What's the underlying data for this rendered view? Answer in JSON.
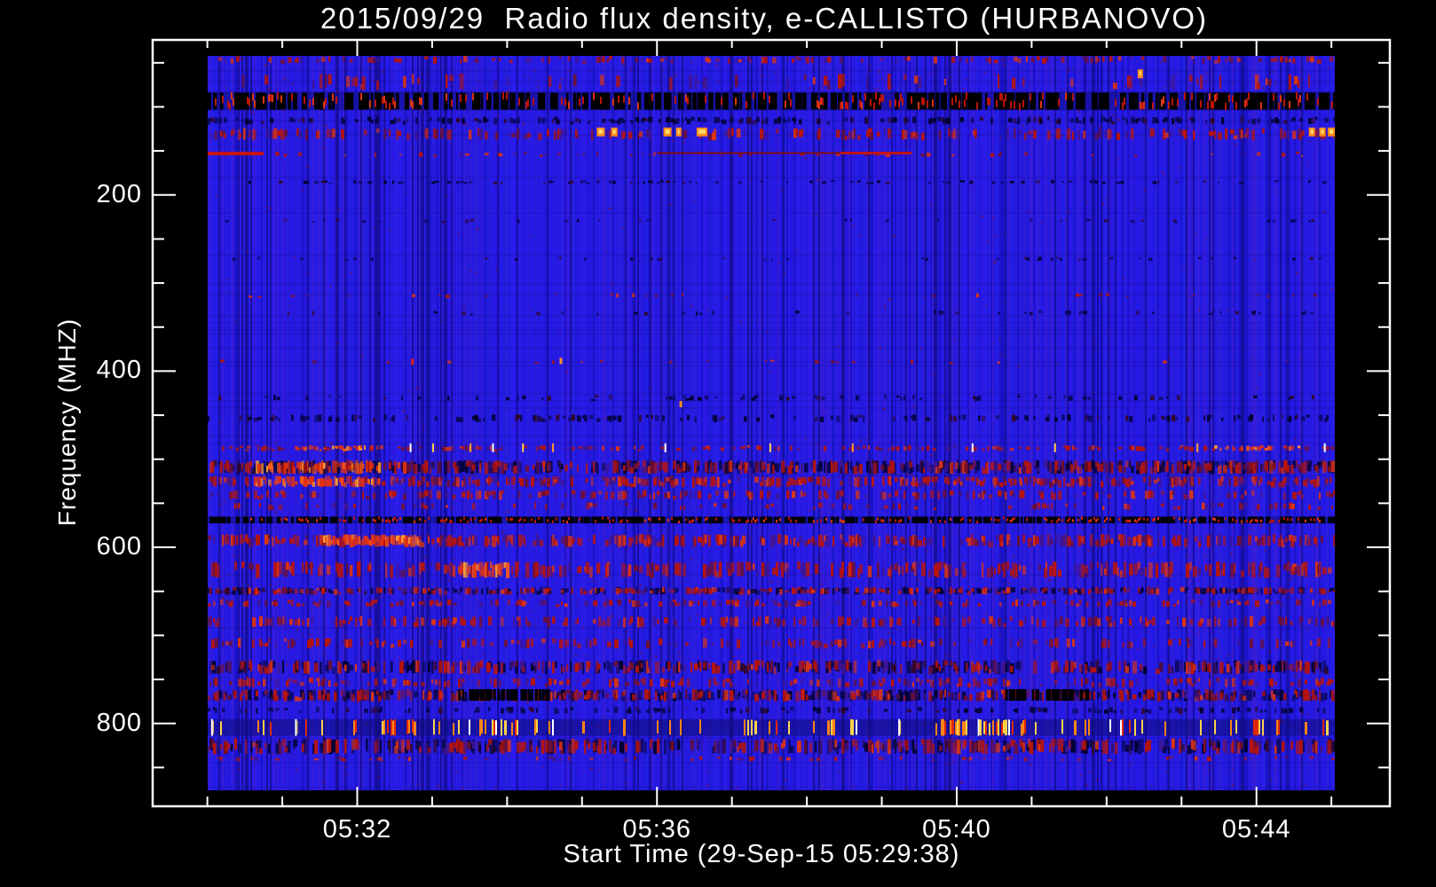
{
  "chart_data": {
    "type": "heatmap",
    "title": "2015/09/29  Radio flux density, e-CALLISTO (HURBANOVO)",
    "xlabel": "Start Time (29-Sep-15 05:29:38)",
    "ylabel": "Frequency (MHZ)",
    "date": "2015/09/29",
    "instrument": "e-CALLISTO",
    "station": "HURBANOVO",
    "start_time": "05:29:38",
    "x_ticks": [
      {
        "label": "05:32",
        "minutes": 32
      },
      {
        "label": "05:36",
        "minutes": 36
      },
      {
        "label": "05:40",
        "minutes": 40
      },
      {
        "label": "05:44",
        "minutes": 44
      }
    ],
    "y_ticks": [
      {
        "label": "200",
        "mhz": 200
      },
      {
        "label": "400",
        "mhz": 400
      },
      {
        "label": "600",
        "mhz": 600
      },
      {
        "label": "800",
        "mhz": 800
      }
    ],
    "x_axis": {
      "range_min": [
        29.27,
        45.78
      ],
      "minor_step_min": 1,
      "units": "hh:mm"
    },
    "y_axis": {
      "range_mhz": [
        24,
        894
      ],
      "minor_step_mhz": 50,
      "inverted": true
    },
    "image_extent": {
      "t_min": [
        30.0,
        45.05
      ],
      "f_mhz": [
        42,
        876
      ]
    },
    "colors": {
      "background": "#2519dd",
      "frame": "#ffffff",
      "text": "#ffffff",
      "rfi_red": "#b81408",
      "rfi_bright": "#ff8414",
      "rfi_yellow": "#ffd24a",
      "rfi_white": "#ffffff",
      "rfi_dark": "#07074a"
    },
    "rfi_bands": [
      {
        "f": [
          42,
          50
        ],
        "style": "speckle",
        "d": 0.2
      },
      {
        "f": [
          62,
          80
        ],
        "style": "speckle",
        "d": 0.1
      },
      {
        "f": [
          83,
          104
        ],
        "style": "black_dash",
        "d": 0.5
      },
      {
        "f": [
          111,
          119
        ],
        "style": "dark",
        "d": 0.3
      },
      {
        "f": [
          124,
          137
        ],
        "style": "speckle",
        "d": 0.3
      },
      {
        "f": [
          151,
          156
        ],
        "style": "speckle",
        "d": 0.1
      },
      {
        "f": [
          183,
          187
        ],
        "style": "dark",
        "d": 0.15
      },
      {
        "f": [
          227,
          231
        ],
        "style": "dark",
        "d": 0.06
      },
      {
        "f": [
          270,
          274
        ],
        "style": "dark",
        "d": 0.06
      },
      {
        "f": [
          311,
          316
        ],
        "style": "speckle",
        "d": 0.05
      },
      {
        "f": [
          331,
          336
        ],
        "style": "dark",
        "d": 0.08
      },
      {
        "f": [
          387,
          391
        ],
        "style": "speckle",
        "d": 0.04
      },
      {
        "f": [
          427,
          433
        ],
        "style": "dark",
        "d": 0.1,
        "segments": [
          {
            "t": [
              36.1,
              37.3
            ],
            "boost": 3
          }
        ]
      },
      {
        "f": [
          449,
          457
        ],
        "style": "dark",
        "d": 0.25
      },
      {
        "f": [
          484,
          490
        ],
        "style": "speckle",
        "d": 0.3,
        "segments": [
          {
            "t": [
              31.1,
              32.2
            ],
            "boost": 2.6
          },
          {
            "t": [
              43.4,
              44.6
            ],
            "boost": 2.0
          }
        ]
      },
      {
        "f": [
          501,
          516
        ],
        "style": "mixed",
        "d": 0.45,
        "segments": [
          {
            "t": [
              30.6,
              32.3
            ],
            "boost": 1.6
          }
        ]
      },
      {
        "f": [
          519,
          531
        ],
        "style": "speckle",
        "d": 0.5,
        "segments": [
          {
            "t": [
              30.6,
              32.3
            ],
            "boost": 1.6
          }
        ]
      },
      {
        "f": [
          535,
          545
        ],
        "style": "speckle",
        "d": 0.25
      },
      {
        "f": [
          549,
          557
        ],
        "style": "speckle",
        "d": 0.12
      },
      {
        "f": [
          565,
          573
        ],
        "style": "black_dash",
        "d": 0.55
      },
      {
        "f": [
          585,
          599
        ],
        "style": "speckle",
        "d": 0.5,
        "segments": [
          {
            "t": [
              31.5,
              32.8
            ],
            "boost": 2.4
          }
        ]
      },
      {
        "f": [
          616,
          634
        ],
        "style": "speckle",
        "d": 0.45,
        "segments": [
          {
            "t": [
              33.35,
              34.0
            ],
            "boost": 2.4
          }
        ]
      },
      {
        "f": [
          645,
          653
        ],
        "style": "mixed",
        "d": 0.35
      },
      {
        "f": [
          659,
          667
        ],
        "style": "speckle",
        "d": 0.3
      },
      {
        "f": [
          678,
          690
        ],
        "style": "speckle",
        "d": 0.3
      },
      {
        "f": [
          703,
          714
        ],
        "style": "speckle",
        "d": 0.22
      },
      {
        "f": [
          728,
          743
        ],
        "style": "mixed",
        "d": 0.35
      },
      {
        "f": [
          748,
          758
        ],
        "style": "speckle",
        "d": 0.3
      },
      {
        "f": [
          761,
          774
        ],
        "style": "mixed",
        "d": 0.4,
        "dark_segments": [
          {
            "t": [
              33.35,
              34.6
            ]
          },
          {
            "t": [
              40.6,
              41.75
            ]
          }
        ]
      },
      {
        "f": [
          781,
          788
        ],
        "style": "dark",
        "d": 0.2
      },
      {
        "f": [
          795,
          814
        ],
        "style": "streaks",
        "d": 0.13,
        "segments": [
          {
            "t": [
              32.3,
              34.6
            ],
            "boost": 2.2
          },
          {
            "t": [
              39.75,
              40.9
            ],
            "boost": 4.5
          }
        ],
        "white_lines": [
          30.05,
          31.17,
          39.22,
          40.28
        ]
      },
      {
        "f": [
          817,
          834
        ],
        "style": "mixed",
        "d": 0.35
      },
      {
        "f": [
          837,
          842
        ],
        "style": "speckle",
        "d": 0.1
      }
    ],
    "features": [
      {
        "type": "hline",
        "f": 153.0,
        "t": [
          30.0,
          30.75
        ],
        "color": "#d01505",
        "w": 4
      },
      {
        "type": "hline",
        "f": 152.5,
        "t": [
          36.0,
          38.45
        ],
        "color": "#8a0d05",
        "w": 2
      },
      {
        "type": "hline",
        "f": 152.5,
        "t": [
          38.45,
          39.4
        ],
        "color": "#cc1505",
        "w": 3
      },
      {
        "type": "blob",
        "t": 35.25,
        "f": 128.5,
        "w": 9
      },
      {
        "type": "blob",
        "t": 35.43,
        "f": 128.5,
        "w": 7
      },
      {
        "type": "blob",
        "t": 36.14,
        "f": 128.5,
        "w": 9
      },
      {
        "type": "blob",
        "t": 36.29,
        "f": 128.5,
        "w": 6
      },
      {
        "type": "blob",
        "t": 36.6,
        "f": 128.5,
        "w": 12
      },
      {
        "type": "blob",
        "t": 42.45,
        "f": 62.5,
        "w": 6
      },
      {
        "type": "blob",
        "t": 44.74,
        "f": 128.5,
        "w": 7
      },
      {
        "type": "blob",
        "t": 44.88,
        "f": 128.5,
        "w": 7
      },
      {
        "type": "blob",
        "t": 45.0,
        "f": 128.5,
        "w": 8
      },
      {
        "type": "dot",
        "t": 32.72,
        "f": 389,
        "color": "#e02010"
      },
      {
        "type": "dot",
        "t": 34.7,
        "f": 388,
        "color": "#ff9020"
      },
      {
        "type": "dot",
        "t": 36.3,
        "f": 437,
        "color": "#ff9020"
      },
      {
        "type": "vticks",
        "f": 487,
        "t_list": [
          32.7,
          33.0,
          33.5,
          33.8,
          34.2,
          34.6,
          36.1,
          37.5,
          38.6,
          40.2,
          41.3,
          43.2,
          44.9
        ]
      }
    ]
  }
}
